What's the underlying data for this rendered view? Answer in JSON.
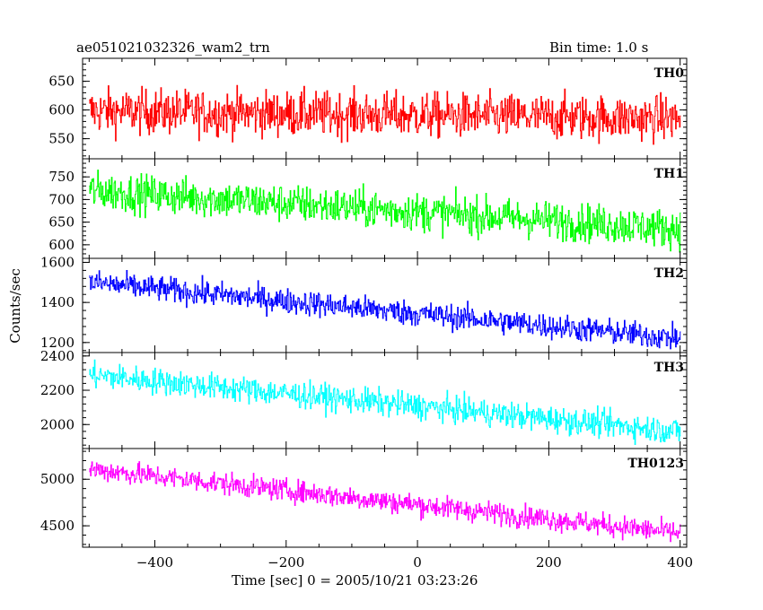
{
  "header": {
    "title": "ae051021032326_wam2_trn",
    "bin_time": "Bin time: 1.0 s"
  },
  "axes": {
    "xlabel": "Time [sec] 0 = 2005/10/21 03:23:26",
    "ylabel": "Counts/sec"
  },
  "chart_data": {
    "type": "line",
    "x_range": [
      -510,
      410
    ],
    "x_ticks": [
      -400,
      -200,
      0,
      200,
      400
    ],
    "x_tick_labels": [
      "−400",
      "−200",
      "0",
      "200",
      "400"
    ],
    "grid": false,
    "panels": [
      {
        "name": "TH0",
        "color": "#ff0000",
        "ylim": [
          515,
          690
        ],
        "yticks": [
          550,
          600,
          650
        ],
        "trend_start": 598,
        "trend_end": 585,
        "noise": 28,
        "bin_time_s": 1.0
      },
      {
        "name": "TH1",
        "color": "#00ff00",
        "ylim": [
          570,
          790
        ],
        "yticks": [
          600,
          650,
          700,
          750
        ],
        "trend_start": 720,
        "trend_end": 635,
        "noise": 30,
        "bin_time_s": 1.0
      },
      {
        "name": "TH2",
        "color": "#0000ff",
        "ylim": [
          1150,
          1620
        ],
        "yticks": [
          1200,
          1400,
          1600
        ],
        "trend_start": 1500,
        "trend_end": 1220,
        "noise": 45,
        "bin_time_s": 1.0
      },
      {
        "name": "TH3",
        "color": "#00ffff",
        "ylim": [
          1860,
          2420
        ],
        "yticks": [
          2000,
          2200,
          2400
        ],
        "trend_start": 2290,
        "trend_end": 1960,
        "noise": 55,
        "bin_time_s": 1.0
      },
      {
        "name": "TH0123",
        "color": "#ff00ff",
        "ylim": [
          4270,
          5330
        ],
        "yticks": [
          4500,
          5000
        ],
        "trend_start": 5110,
        "trend_end": 4420,
        "noise": 85,
        "bin_time_s": 1.0
      }
    ]
  }
}
